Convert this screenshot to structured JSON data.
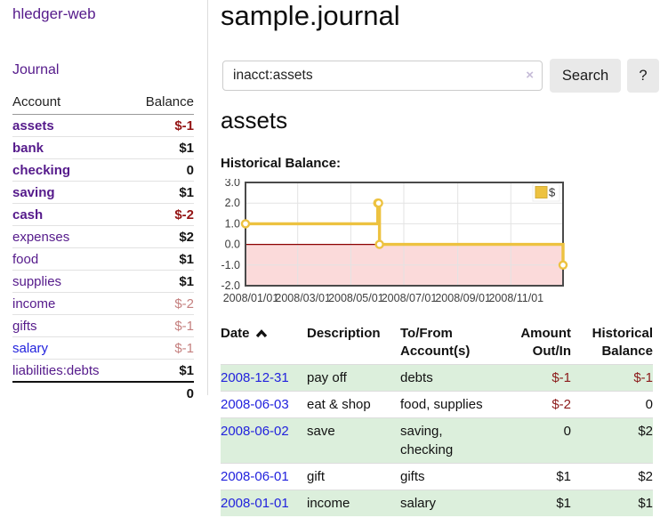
{
  "sidebar": {
    "app_title": "hledger-web",
    "nav_journal": "Journal",
    "table": {
      "account_header": "Account",
      "balance_header": "Balance",
      "rows": [
        {
          "name": "assets",
          "balance": "$-1"
        },
        {
          "name": "bank",
          "balance": "$1"
        },
        {
          "name": "checking",
          "balance": "0"
        },
        {
          "name": "saving",
          "balance": "$1"
        },
        {
          "name": "cash",
          "balance": "$-2"
        },
        {
          "name": "expenses",
          "balance": "$2"
        },
        {
          "name": "food",
          "balance": "$1"
        },
        {
          "name": "supplies",
          "balance": "$1"
        },
        {
          "name": "income",
          "balance": "$-2"
        },
        {
          "name": "gifts",
          "balance": "$-1"
        },
        {
          "name": "salary",
          "balance": "$-1"
        },
        {
          "name": "liabilities:debts",
          "balance": "$1"
        }
      ],
      "total": "0"
    }
  },
  "header": {
    "title": "sample.journal"
  },
  "search": {
    "query": "inacct:assets",
    "search_button": "Search",
    "help_button": "?",
    "clear_icon": "×"
  },
  "account_page": {
    "heading": "assets",
    "chart_label": "Historical Balance:"
  },
  "chart_data": {
    "type": "line",
    "title": "Historical Balance:",
    "series": [
      {
        "name": "$",
        "color": "#edc240",
        "step": true,
        "points": [
          [
            "2008-01-01",
            1
          ],
          [
            "2008-06-01",
            2
          ],
          [
            "2008-06-02",
            2
          ],
          [
            "2008-06-03",
            0
          ],
          [
            "2008-12-31",
            -1
          ]
        ]
      }
    ],
    "x_range": [
      "2008-01-01",
      "2008-12-31"
    ],
    "y_range": [
      -2,
      3
    ],
    "y_ticks": [
      "3.0",
      "2.0",
      "1.0",
      "0.0",
      "-1.0",
      "-2.0"
    ],
    "x_ticks": [
      "2008/01/01",
      "2008/03/01",
      "2008/05/01",
      "2008/07/01",
      "2008/09/01",
      "2008/11/01"
    ],
    "legend": "$",
    "grid": true,
    "legend_position": "top-right",
    "negative_region_fill": "#fbdada",
    "zero_line_color": "#8b0000"
  },
  "register": {
    "columns": {
      "date": "Date",
      "description": "Description",
      "account": "To/From Account(s)",
      "amount": "Amount Out/In",
      "balance": "Historical Balance"
    },
    "rows": [
      {
        "date": "2008-12-31",
        "description": "pay off",
        "account": "debts",
        "amount": "$-1",
        "balance": "$-1"
      },
      {
        "date": "2008-06-03",
        "description": "eat & shop",
        "account": "food, supplies",
        "amount": "$-2",
        "balance": "0"
      },
      {
        "date": "2008-06-02",
        "description": "save",
        "account": "saving, checking",
        "amount": "0",
        "balance": "$2"
      },
      {
        "date": "2008-06-01",
        "description": "gift",
        "account": "gifts",
        "amount": "$1",
        "balance": "$2"
      },
      {
        "date": "2008-01-01",
        "description": "income",
        "account": "salary",
        "amount": "$1",
        "balance": "$1"
      }
    ]
  },
  "colors": {
    "link_purple": "#551a8b",
    "link_blue": "#2222dd",
    "negative_strong": "#941414",
    "negative_soft": "#c5807f",
    "row_stripe_green": "#dcefdc",
    "series_yellow": "#edc240",
    "negative_region_pink": "#fbdada",
    "zero_line_red": "#8b0000"
  }
}
